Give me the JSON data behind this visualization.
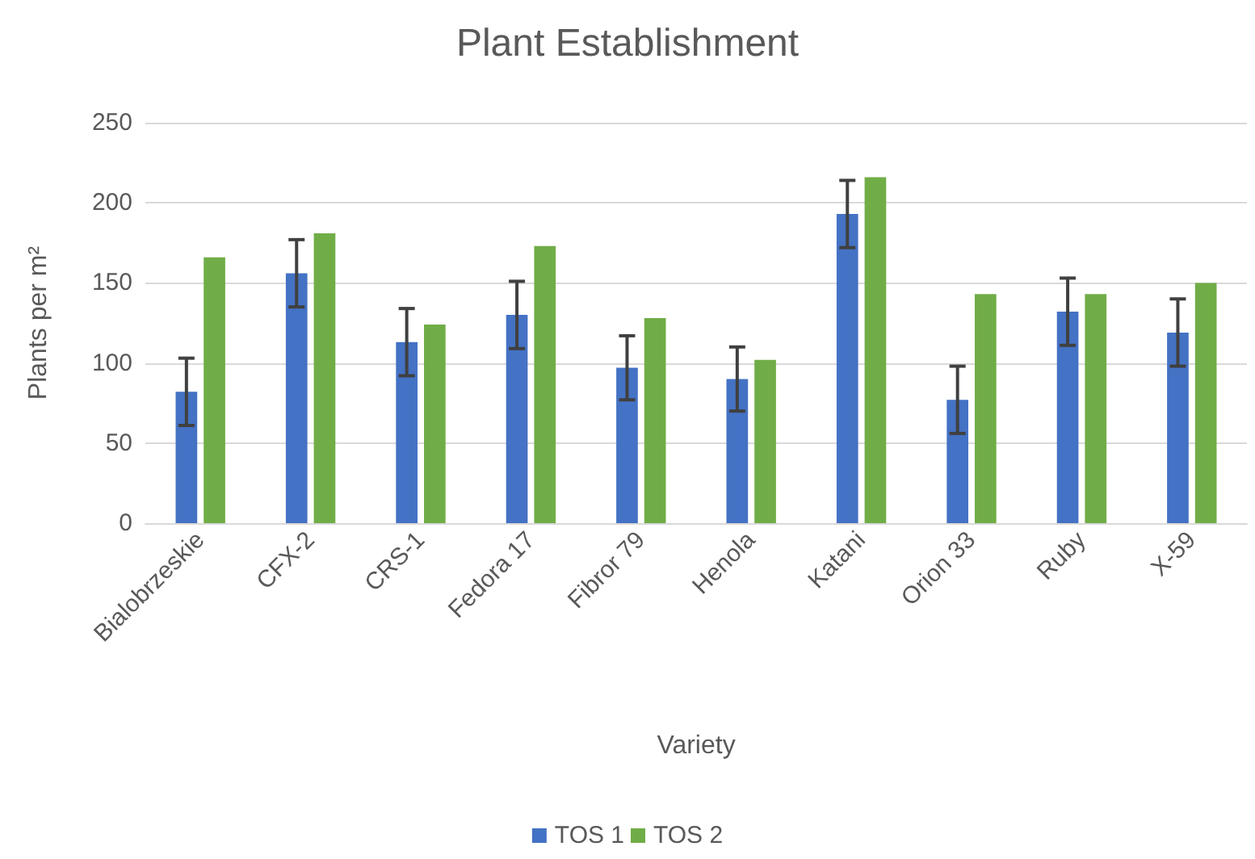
{
  "chart_data": {
    "type": "bar",
    "title": "Plant Establishment",
    "xlabel": "Variety",
    "ylabel": "Plants per m²",
    "categories": [
      "Bialobrzeskie",
      "CFX-2",
      "CRS-1",
      "Fedora 17",
      "Fibror 79",
      "Henola",
      "Katani",
      "Orion 33",
      "Ruby",
      "X-59"
    ],
    "series": [
      {
        "name": "TOS 1",
        "color": "#4472c4",
        "values": [
          82,
          156,
          113,
          130,
          97,
          90,
          193,
          77,
          132,
          119
        ],
        "errors": [
          21,
          21,
          21,
          21,
          20,
          20,
          21,
          21,
          21,
          21
        ]
      },
      {
        "name": "TOS 2",
        "color": "#70ad47",
        "values": [
          166,
          181,
          124,
          173,
          128,
          102,
          216,
          143,
          143,
          150
        ]
      }
    ],
    "ylim": [
      0,
      250
    ],
    "yticks": [
      0,
      50,
      100,
      150,
      200,
      250
    ],
    "grid": "y",
    "legend": "bottom"
  }
}
